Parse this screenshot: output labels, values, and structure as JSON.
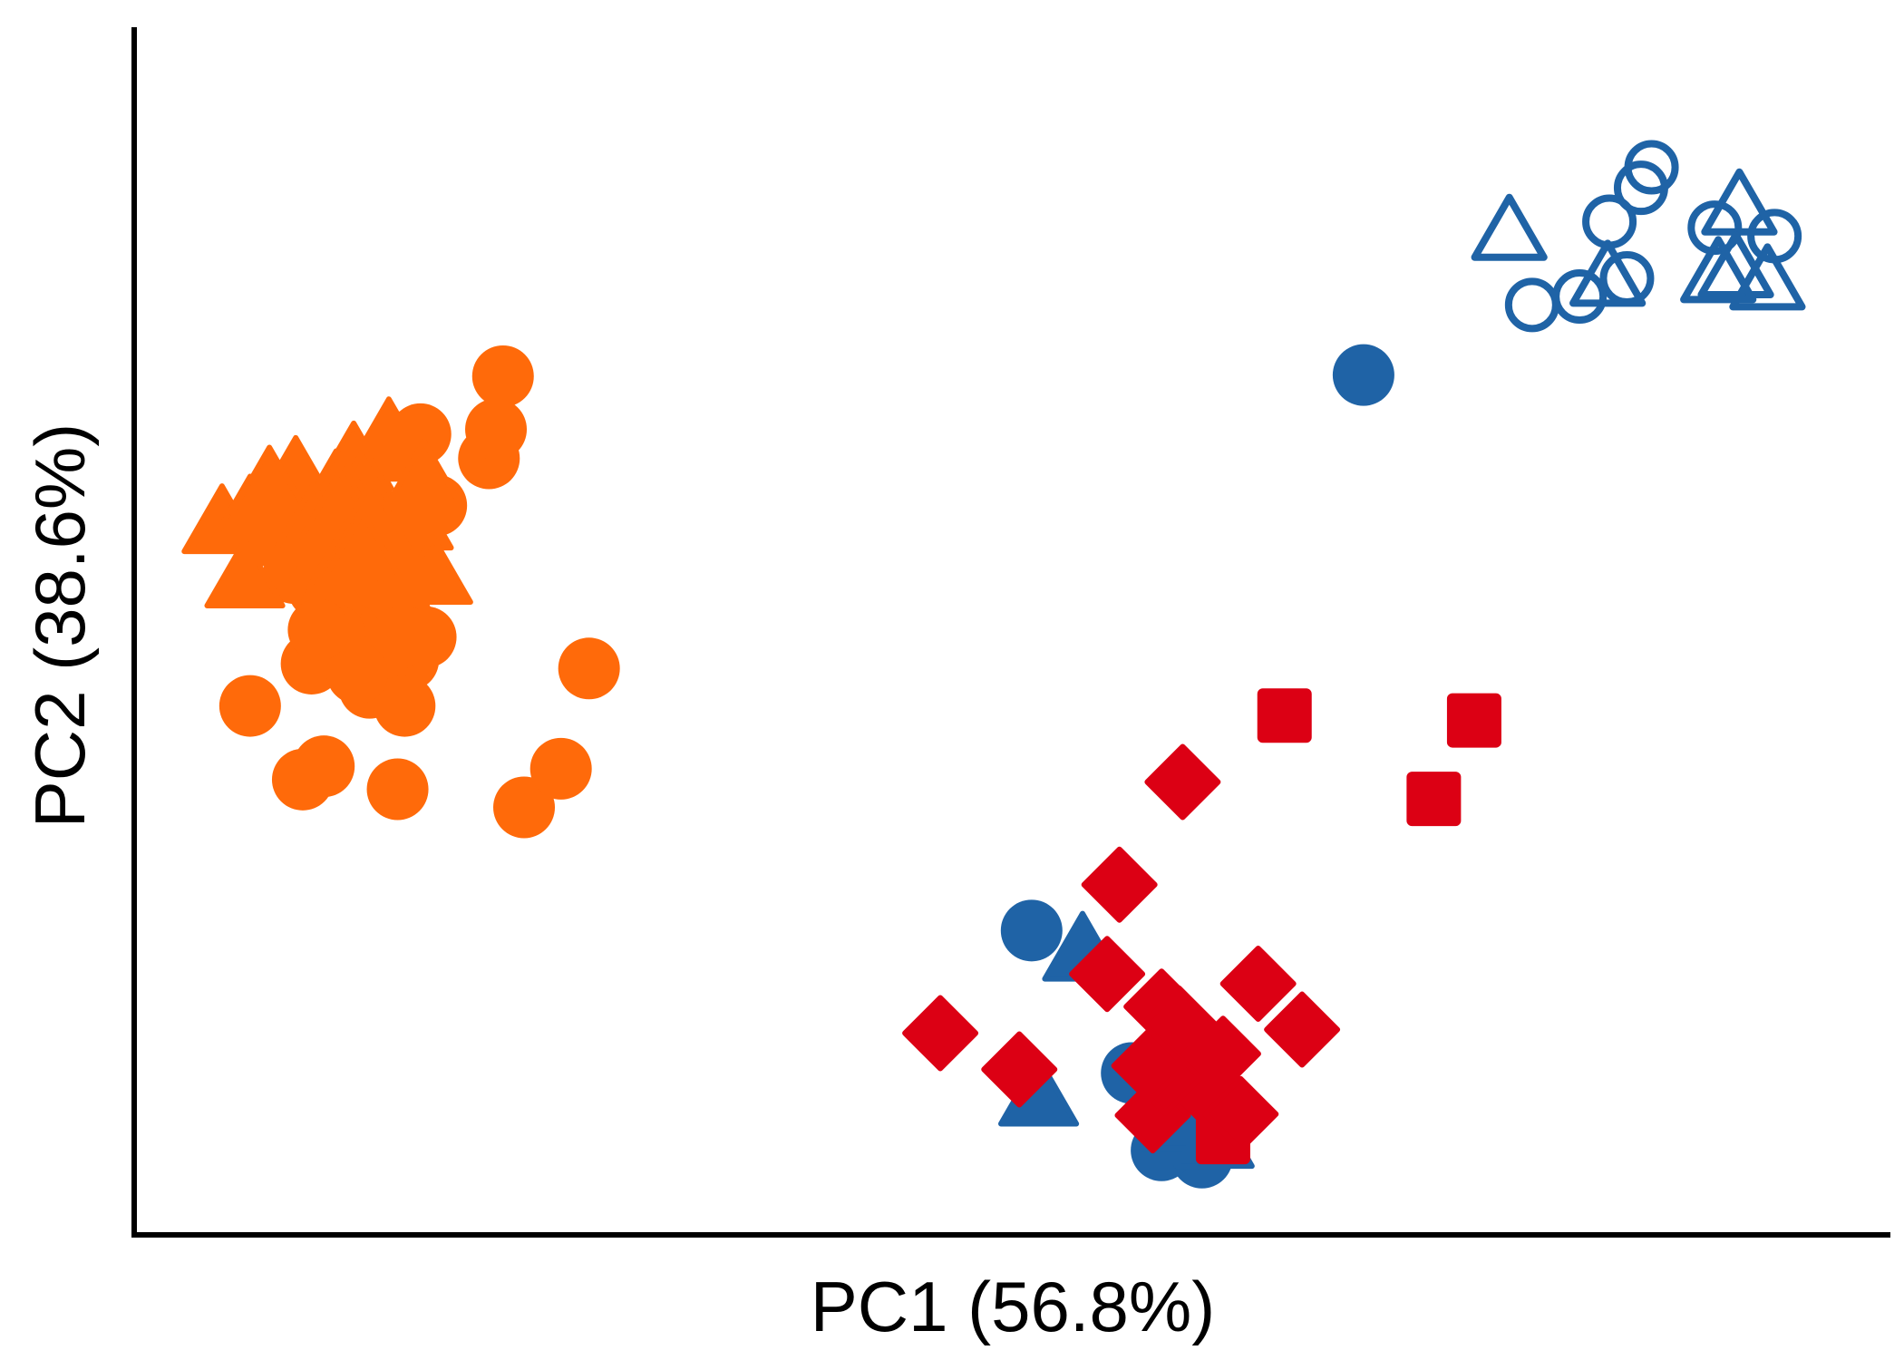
{
  "chart_data": {
    "type": "scatter",
    "xlabel": "PC1 (56.8%)",
    "ylabel": "PC2 (38.6%)",
    "grid": false,
    "legend": "none",
    "xlim": [
      0,
      100
    ],
    "ylim": [
      0,
      100
    ],
    "colors": {
      "orange": "#ff6a0a",
      "blue": "#1f63a6",
      "red": "#dc0014"
    },
    "series": [
      {
        "marker": "circle",
        "fill": "filled",
        "color": "#ff6a0a",
        "points": [
          [
            21.0,
            71.1
          ],
          [
            16.3,
            66.3
          ],
          [
            20.2,
            64.3
          ],
          [
            16.2,
            59.3
          ],
          [
            16.0,
            58.1
          ],
          [
            14.1,
            53.7
          ],
          [
            9.1,
            54.8
          ],
          [
            14.0,
            51.7
          ],
          [
            11.4,
            53.2
          ],
          [
            12.8,
            50.9
          ],
          [
            14.9,
            49.2
          ],
          [
            15.2,
            48.4
          ],
          [
            14.1,
            48.6
          ],
          [
            15.6,
            47.6
          ],
          [
            10.5,
            53.5
          ],
          [
            11.0,
            50.0
          ],
          [
            13.5,
            52.5
          ],
          [
            15.5,
            49.5
          ],
          [
            16.6,
            49.5
          ],
          [
            13.4,
            45.3
          ],
          [
            15.2,
            51.2
          ],
          [
            12.3,
            49.8
          ],
          [
            11.2,
            51.8
          ],
          [
            10.1,
            47.3
          ],
          [
            11.4,
            49.7
          ],
          [
            20.6,
            66.7
          ],
          [
            17.2,
            60.4
          ],
          [
            15.3,
            49.6
          ],
          [
            13.8,
            47.2
          ],
          [
            25.9,
            46.9
          ],
          [
            6.6,
            43.8
          ],
          [
            15.4,
            43.8
          ],
          [
            10.8,
            38.8
          ],
          [
            15.0,
            36.9
          ],
          [
            22.2,
            35.4
          ],
          [
            24.3,
            38.6
          ],
          [
            9.6,
            37.7
          ],
          [
            12.7,
            46.5
          ],
          [
            10.5,
            50.1
          ]
        ]
      },
      {
        "marker": "triangle",
        "fill": "filled",
        "color": "#ff6a0a",
        "points": [
          [
            5.0,
            58.4
          ],
          [
            9.2,
            62.4
          ],
          [
            9.4,
            61.0
          ],
          [
            6.6,
            59.2
          ],
          [
            7.7,
            61.6
          ],
          [
            8.8,
            57.9
          ],
          [
            11.5,
            61.3
          ],
          [
            12.5,
            63.6
          ],
          [
            14.5,
            65.6
          ],
          [
            15.2,
            64.4
          ],
          [
            13.1,
            61.5
          ],
          [
            12.2,
            60.1
          ],
          [
            15.9,
            58.7
          ],
          [
            17.0,
            54.2
          ],
          [
            6.3,
            53.9
          ],
          [
            8.2,
            57.4
          ],
          [
            10.2,
            58.5
          ],
          [
            14.4,
            56.4
          ],
          [
            11.7,
            59.6
          ],
          [
            13.5,
            58.7
          ],
          [
            15.0,
            54.2
          ],
          [
            12.1,
            55.4
          ],
          [
            16.5,
            62.1
          ],
          [
            13.0,
            56.2
          ]
        ]
      },
      {
        "marker": "circle",
        "fill": "filled",
        "color": "#1f63a6",
        "points": [
          [
            70.0,
            71.2
          ],
          [
            51.1,
            25.2
          ],
          [
            56.8,
            13.4
          ],
          [
            60.8,
            6.4
          ],
          [
            58.5,
            7.0
          ]
        ]
      },
      {
        "marker": "triangle",
        "fill": "filled",
        "color": "#1f63a6",
        "points": [
          [
            54.0,
            23.0
          ],
          [
            51.5,
            11.0
          ],
          [
            59.5,
            9.0
          ],
          [
            61.5,
            7.5
          ]
        ]
      },
      {
        "marker": "circle",
        "fill": "hollow",
        "color": "#1f63a6",
        "points": [
          [
            85.8,
            86.7
          ],
          [
            86.4,
            88.4
          ],
          [
            84.0,
            83.9
          ],
          [
            85.0,
            79.2
          ],
          [
            82.3,
            77.7
          ],
          [
            90.0,
            83.4
          ],
          [
            93.4,
            82.7
          ],
          [
            79.6,
            77.0
          ]
        ]
      },
      {
        "marker": "triangle",
        "fill": "hollow",
        "color": "#1f63a6",
        "points": [
          [
            91.4,
            84.7
          ],
          [
            78.3,
            82.6
          ],
          [
            91.2,
            79.5
          ],
          [
            83.9,
            78.8
          ],
          [
            90.2,
            79.1
          ],
          [
            93.0,
            78.5
          ]
        ]
      },
      {
        "marker": "square",
        "fill": "filled",
        "color": "#dc0014",
        "points": [
          [
            65.5,
            43.0
          ],
          [
            76.3,
            42.6
          ],
          [
            74.0,
            36.1
          ],
          [
            62.0,
            8.1
          ]
        ]
      },
      {
        "marker": "diamond",
        "fill": "filled",
        "color": "#dc0014",
        "points": [
          [
            59.7,
            37.5
          ],
          [
            56.1,
            29.0
          ],
          [
            45.9,
            16.7
          ],
          [
            50.4,
            13.7
          ],
          [
            55.4,
            21.6
          ],
          [
            58.5,
            18.9
          ],
          [
            60.5,
            15.8
          ],
          [
            64.0,
            20.8
          ],
          [
            66.5,
            17.0
          ],
          [
            61.0,
            12.0
          ],
          [
            58.0,
            9.9
          ],
          [
            59.5,
            17.5
          ],
          [
            62.0,
            15.0
          ],
          [
            58.7,
            13.0
          ],
          [
            63.0,
            10.0
          ],
          [
            57.8,
            14.0
          ]
        ]
      }
    ]
  }
}
